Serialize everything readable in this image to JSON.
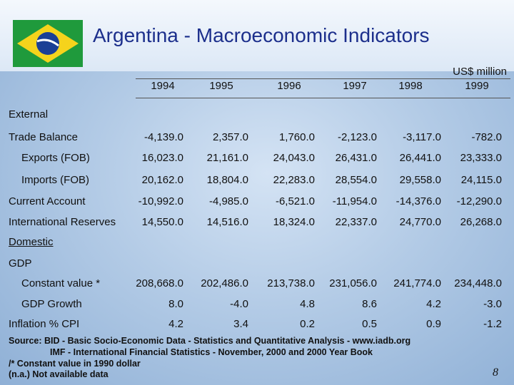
{
  "header": {
    "title": "Argentina - Macroeconomic Indicators",
    "unit": "US$ million"
  },
  "table": {
    "columns": [
      "1994",
      "1995",
      "1996",
      "1997",
      "1998",
      "1999"
    ],
    "rows": [
      {
        "label": "External"
      },
      {
        "label": "Trade Balance",
        "values": [
          "-4,139.0",
          "2,357.0",
          "1,760.0",
          "-2,123.0",
          "-3,117.0",
          "-782.0"
        ]
      },
      {
        "label": "Exports (FOB)",
        "values": [
          "16,023.0",
          "21,161.0",
          "24,043.0",
          "26,431.0",
          "26,441.0",
          "23,333.0"
        ]
      },
      {
        "label": "Imports (FOB)",
        "values": [
          "20,162.0",
          "18,804.0",
          "22,283.0",
          "28,554.0",
          "29,558.0",
          "24,115.0"
        ]
      },
      {
        "label": "Current Account",
        "values": [
          "-10,992.0",
          "-4,985.0",
          "-6,521.0",
          "-11,954.0",
          "-14,376.0",
          "-12,290.0"
        ]
      },
      {
        "label": "International Reserves",
        "values": [
          "14,550.0",
          "14,516.0",
          "18,324.0",
          "22,337.0",
          "24,770.0",
          "26,268.0"
        ]
      },
      {
        "label": "Domestic"
      },
      {
        "label": "GDP"
      },
      {
        "label": "Constant value *",
        "values": [
          "208,668.0",
          "202,486.0",
          "213,738.0",
          "231,056.0",
          "241,774.0",
          "234,448.0"
        ]
      },
      {
        "label": "GDP Growth",
        "values": [
          "8.0",
          "-4.0",
          "4.8",
          "8.6",
          "4.2",
          "-3.0"
        ]
      },
      {
        "label": "Inflation % CPI",
        "values": [
          "4.2",
          "3.4",
          "0.2",
          "0.5",
          "0.9",
          "-1.2"
        ]
      }
    ]
  },
  "notes": [
    "Source: BID - Basic Socio-Economic Data - Statistics and Quantitative Analysis - www.iadb.org",
    "IMF - International Financial Statistics - November, 2000 and 2000 Year Book",
    "/* Constant value in 1990 dollar",
    "(n.a.) Not available data"
  ],
  "page_number": "8"
}
